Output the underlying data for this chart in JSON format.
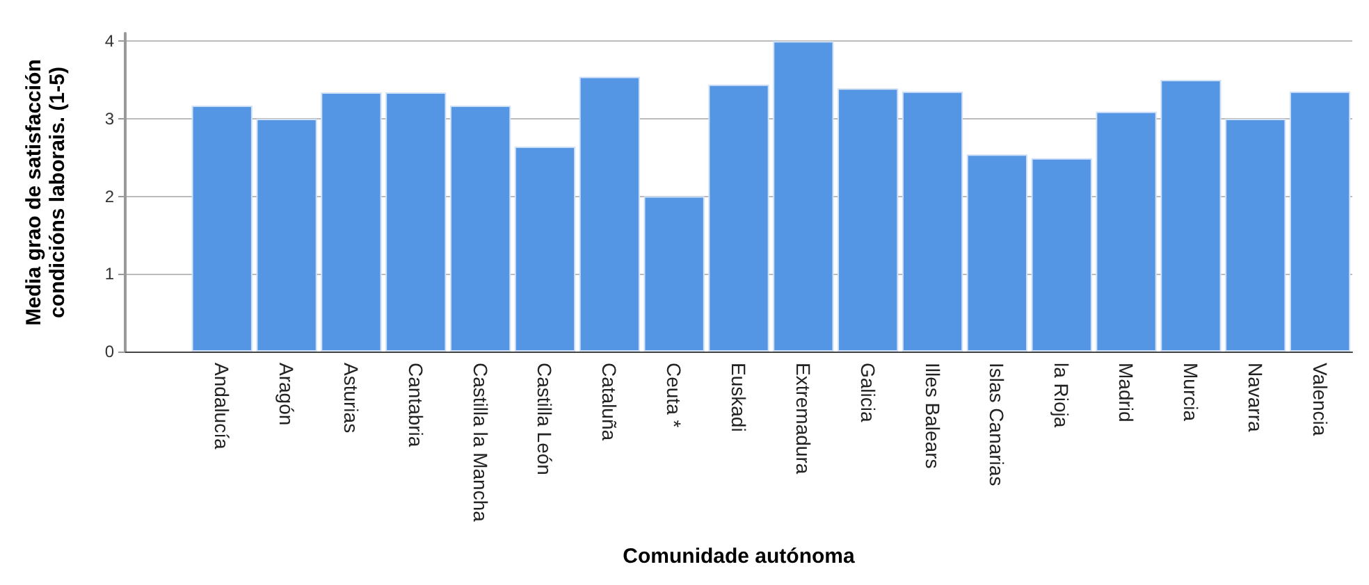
{
  "chart_data": {
    "type": "bar",
    "xlabel": "Comunidade autónoma",
    "ylabel": "Media grao de satisfacción\ncondicións laborais. (1-5)",
    "categories": [
      null,
      "Andalucía",
      "Aragón",
      "Asturias",
      "Cantabria",
      "Castilla la Mancha",
      "Castilla León",
      "Cataluña",
      "Ceuta *",
      "Euskadi",
      "Extremadura",
      "Galicia",
      "Illes Balears",
      "Islas Canarias",
      "la Rioja",
      "Madrid",
      "Murcia",
      "Navarra",
      "Valencia"
    ],
    "values": [
      null,
      3.17,
      3.0,
      3.34,
      3.34,
      3.17,
      2.64,
      3.54,
      2.0,
      3.44,
      4.0,
      3.39,
      3.35,
      2.54,
      2.49,
      3.09,
      3.5,
      3.0,
      3.35
    ],
    "color": "#5596e4",
    "ylim": [
      0,
      4.1
    ],
    "yticks": [
      0,
      1,
      2,
      3,
      4
    ],
    "grid": "y"
  }
}
